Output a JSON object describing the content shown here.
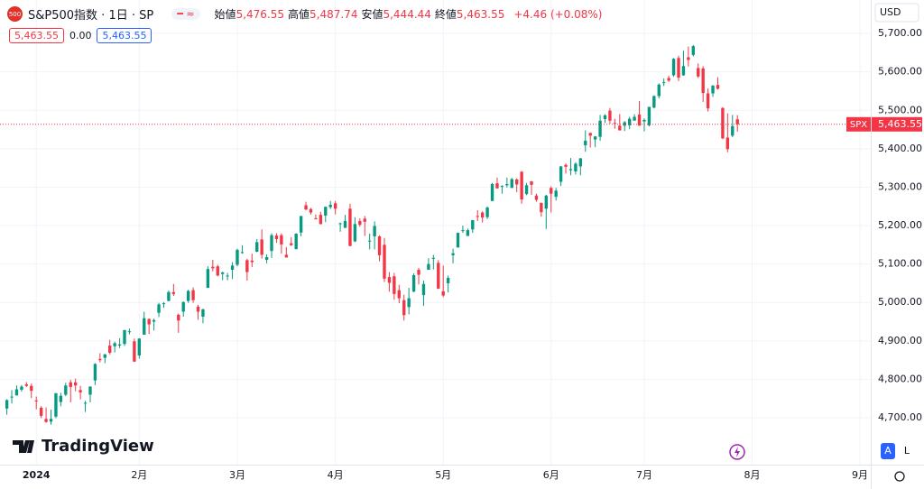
{
  "header": {
    "symbol_badge": "500",
    "title": "S&P500指数 · 1日 · SP",
    "ohlc_legend": [
      {
        "label": "始値",
        "value": "5,476.55"
      },
      {
        "label": "高値",
        "value": "5,487.74"
      },
      {
        "label": "安値",
        "value": "5,444.44"
      },
      {
        "label": "終値",
        "value": "5,463.55"
      }
    ],
    "change": "+4.46 (+0.08%)",
    "row2": [
      "5,463.55",
      "0.00",
      "5,463.55"
    ]
  },
  "currency": "USD",
  "logo": "TradingView",
  "buttons": [
    "A",
    "L"
  ],
  "chart_data": {
    "type": "candlestick",
    "up_color": "#089981",
    "down_color": "#f23645",
    "grid": true,
    "xlim": [
      -1.4,
      176.2
    ],
    "ylim": [
      4578,
      5787
    ],
    "xticks": [
      {
        "value": 6,
        "label": "2024"
      },
      {
        "value": 27,
        "label": "2月"
      },
      {
        "value": 47,
        "label": "3月"
      },
      {
        "value": 67,
        "label": "4月"
      },
      {
        "value": 89,
        "label": "5月"
      },
      {
        "value": 111,
        "label": "6月"
      },
      {
        "value": 130,
        "label": "7月"
      },
      {
        "value": 152,
        "label": "8月"
      },
      {
        "value": 174,
        "label": "9月"
      }
    ],
    "yticks": [
      {
        "value": 4700,
        "label": "4,700.00"
      },
      {
        "value": 4800,
        "label": "4,800.00"
      },
      {
        "value": 4900,
        "label": "4,900.00"
      },
      {
        "value": 5000,
        "label": "5,000.00"
      },
      {
        "value": 5100,
        "label": "5,100.00"
      },
      {
        "value": 5200,
        "label": "5,200.00"
      },
      {
        "value": 5300,
        "label": "5,300.00"
      },
      {
        "value": 5400,
        "label": "5,400.00"
      },
      {
        "value": 5500,
        "label": "5,500.00"
      },
      {
        "value": 5600,
        "label": "5,600.00"
      },
      {
        "value": 5700,
        "label": "5,700.00"
      }
    ],
    "price_tag": {
      "symbol": "SPX",
      "price": "5,463.55"
    },
    "ohlc": [
      [
        4724,
        4748,
        4708,
        4746
      ],
      [
        4754,
        4772,
        4737,
        4755
      ],
      [
        4758,
        4784,
        4758,
        4774
      ],
      [
        4773,
        4785,
        4768,
        4781
      ],
      [
        4787,
        4793,
        4780,
        4783
      ],
      [
        4783,
        4789,
        4751,
        4770
      ],
      [
        4745,
        4755,
        4722,
        4743
      ],
      [
        4726,
        4730,
        4699,
        4705
      ],
      [
        4697,
        4727,
        4687,
        4689
      ],
      [
        4690,
        4721,
        4682,
        4697
      ],
      [
        4703,
        4764,
        4699,
        4764
      ],
      [
        4741,
        4765,
        4730,
        4757
      ],
      [
        4760,
        4791,
        4756,
        4784
      ],
      [
        4792,
        4799,
        4740,
        4780
      ],
      [
        4792,
        4802,
        4769,
        4784
      ],
      [
        4772,
        4783,
        4748,
        4766
      ],
      [
        4739,
        4744,
        4715,
        4739
      ],
      [
        4760,
        4782,
        4740,
        4781
      ],
      [
        4797,
        4842,
        4785,
        4840
      ],
      [
        4853,
        4868,
        4844,
        4850
      ],
      [
        4856,
        4866,
        4842,
        4865
      ],
      [
        4888,
        4903,
        4865,
        4869
      ],
      [
        4886,
        4898,
        4870,
        4894
      ],
      [
        4888,
        4907,
        4881,
        4891
      ],
      [
        4892,
        4929,
        4887,
        4928
      ],
      [
        4925,
        4932,
        4917,
        4925
      ],
      [
        4899,
        4906,
        4845,
        4846
      ],
      [
        4862,
        4907,
        4854,
        4906
      ],
      [
        4916,
        4976,
        4916,
        4959
      ],
      [
        4957,
        4958,
        4918,
        4943
      ],
      [
        4950,
        4958,
        4927,
        4954
      ],
      [
        4973,
        4999,
        4962,
        4995
      ],
      [
        4996,
        5001,
        4986,
        4998
      ],
      [
        5004,
        5031,
        5003,
        5027
      ],
      [
        5027,
        5048,
        5017,
        5022
      ],
      [
        4968,
        4971,
        4921,
        4953
      ],
      [
        4976,
        5003,
        4963,
        5001
      ],
      [
        5004,
        5033,
        4999,
        5030
      ],
      [
        5032,
        5039,
        4999,
        5006
      ],
      [
        4989,
        4994,
        4955,
        4976
      ],
      [
        4963,
        4984,
        4946,
        4982
      ],
      [
        5038,
        5094,
        5038,
        5087
      ],
      [
        5093,
        5111,
        5081,
        5089
      ],
      [
        5094,
        5098,
        5068,
        5070
      ],
      [
        5074,
        5080,
        5058,
        5078
      ],
      [
        5068,
        5077,
        5058,
        5070
      ],
      [
        5085,
        5105,
        5061,
        5096
      ],
      [
        5098,
        5140,
        5094,
        5137
      ],
      [
        5131,
        5149,
        5127,
        5131
      ],
      [
        5110,
        5114,
        5057,
        5079
      ],
      [
        5109,
        5127,
        5092,
        5105
      ],
      [
        5132,
        5165,
        5131,
        5157
      ],
      [
        5164,
        5190,
        5114,
        5124
      ],
      [
        5111,
        5125,
        5102,
        5118
      ],
      [
        5134,
        5180,
        5116,
        5175
      ],
      [
        5174,
        5180,
        5155,
        5165
      ],
      [
        5175,
        5180,
        5127,
        5151
      ],
      [
        5124,
        5144,
        5117,
        5117
      ],
      [
        5154,
        5170,
        5147,
        5149
      ],
      [
        5139,
        5180,
        5138,
        5179
      ],
      [
        5182,
        5225,
        5172,
        5225
      ],
      [
        5253,
        5262,
        5240,
        5242
      ],
      [
        5243,
        5246,
        5229,
        5234
      ],
      [
        5219,
        5229,
        5216,
        5218
      ],
      [
        5228,
        5236,
        5203,
        5204
      ],
      [
        5226,
        5249,
        5209,
        5249
      ],
      [
        5248,
        5264,
        5243,
        5254
      ],
      [
        5258,
        5264,
        5229,
        5244
      ],
      [
        5205,
        5208,
        5184,
        5206
      ],
      [
        5194,
        5228,
        5194,
        5212
      ],
      [
        5244,
        5257,
        5146,
        5147
      ],
      [
        5159,
        5222,
        5157,
        5204
      ],
      [
        5212,
        5219,
        5197,
        5202
      ],
      [
        5218,
        5225,
        5173,
        5210
      ],
      [
        5161,
        5179,
        5138,
        5161
      ],
      [
        5172,
        5211,
        5138,
        5199
      ],
      [
        5172,
        5175,
        5107,
        5123
      ],
      [
        5150,
        5168,
        5053,
        5062
      ],
      [
        5066,
        5079,
        5028,
        5051
      ],
      [
        5068,
        5077,
        5007,
        5022
      ],
      [
        5032,
        5046,
        4998,
        5011
      ],
      [
        5006,
        5020,
        4953,
        4967
      ],
      [
        4988,
        5038,
        4969,
        5011
      ],
      [
        5028,
        5076,
        5027,
        5071
      ],
      [
        5085,
        5090,
        5047,
        5072
      ],
      [
        5019,
        5057,
        4991,
        5048
      ],
      [
        5085,
        5115,
        5085,
        5100
      ],
      [
        5114,
        5124,
        5086,
        5116
      ],
      [
        5103,
        5110,
        5035,
        5036
      ],
      [
        5029,
        5096,
        5014,
        5018
      ],
      [
        5050,
        5070,
        5026,
        5064
      ],
      [
        5123,
        5140,
        5102,
        5128
      ],
      [
        5143,
        5182,
        5143,
        5181
      ],
      [
        5188,
        5200,
        5181,
        5188
      ],
      [
        5173,
        5192,
        5173,
        5188
      ],
      [
        5190,
        5215,
        5181,
        5214
      ],
      [
        5225,
        5240,
        5212,
        5223
      ],
      [
        5234,
        5237,
        5208,
        5221
      ],
      [
        5222,
        5250,
        5217,
        5247
      ],
      [
        5264,
        5311,
        5264,
        5308
      ],
      [
        5310,
        5325,
        5296,
        5297
      ],
      [
        5303,
        5305,
        5283,
        5303
      ],
      [
        5305,
        5325,
        5299,
        5308
      ],
      [
        5298,
        5324,
        5298,
        5321
      ],
      [
        5320,
        5323,
        5287,
        5307
      ],
      [
        5340,
        5342,
        5257,
        5268
      ],
      [
        5282,
        5311,
        5279,
        5305
      ],
      [
        5315,
        5316,
        5280,
        5306
      ],
      [
        5278,
        5283,
        5262,
        5267
      ],
      [
        5259,
        5260,
        5223,
        5235
      ],
      [
        5244,
        5280,
        5191,
        5278
      ],
      [
        5298,
        5302,
        5234,
        5283
      ],
      [
        5275,
        5298,
        5265,
        5291
      ],
      [
        5314,
        5355,
        5303,
        5354
      ],
      [
        5358,
        5362,
        5335,
        5353
      ],
      [
        5344,
        5376,
        5331,
        5347
      ],
      [
        5341,
        5365,
        5333,
        5361
      ],
      [
        5354,
        5376,
        5331,
        5375
      ],
      [
        5409,
        5448,
        5392,
        5421
      ],
      [
        5441,
        5442,
        5403,
        5434
      ],
      [
        5424,
        5433,
        5404,
        5432
      ],
      [
        5431,
        5488,
        5421,
        5473
      ],
      [
        5477,
        5490,
        5467,
        5487
      ],
      [
        5499,
        5506,
        5465,
        5473
      ],
      [
        5467,
        5478,
        5452,
        5465
      ],
      [
        5460,
        5490,
        5447,
        5448
      ],
      [
        5460,
        5472,
        5446,
        5469
      ],
      [
        5461,
        5483,
        5451,
        5478
      ],
      [
        5473,
        5490,
        5474,
        5483
      ],
      [
        5489,
        5524,
        5460,
        5460
      ],
      [
        5471,
        5479,
        5445,
        5475
      ],
      [
        5461,
        5509,
        5458,
        5509
      ],
      [
        5507,
        5539,
        5505,
        5537
      ],
      [
        5537,
        5570,
        5531,
        5567
      ],
      [
        5572,
        5583,
        5563,
        5573
      ],
      [
        5584,
        5590,
        5574,
        5577
      ],
      [
        5591,
        5636,
        5587,
        5634
      ],
      [
        5636,
        5642,
        5576,
        5585
      ],
      [
        5591,
        5655,
        5590,
        5615
      ],
      [
        5638,
        5666,
        5614,
        5631
      ],
      [
        5644,
        5670,
        5640,
        5667
      ],
      [
        5610,
        5622,
        5584,
        5588
      ],
      [
        5609,
        5615,
        5522,
        5545
      ],
      [
        5544,
        5557,
        5497,
        5505
      ],
      [
        5544,
        5566,
        5535,
        5564
      ],
      [
        5566,
        5586,
        5554,
        5556
      ],
      [
        5506,
        5508,
        5425,
        5427
      ],
      [
        5429,
        5492,
        5391,
        5399
      ],
      [
        5434,
        5488,
        5430,
        5459
      ],
      [
        5476.55,
        5487.74,
        5444.44,
        5463.55
      ]
    ]
  }
}
